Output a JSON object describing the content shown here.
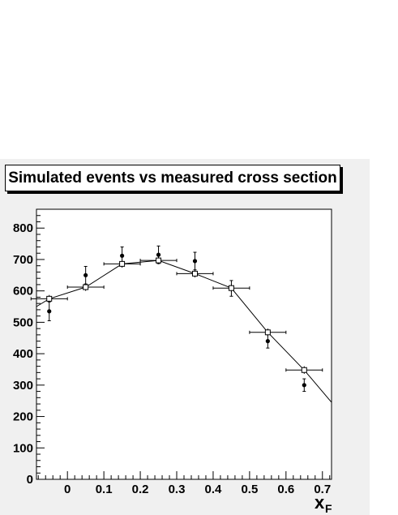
{
  "chart_data": {
    "type": "scatter",
    "title": "Simulated events vs measured cross section",
    "xlabel": "x",
    "xlabel_subscript": "F",
    "ylabel": "",
    "xlim": [
      -0.085,
      0.725
    ],
    "ylim": [
      0,
      860
    ],
    "x_ticks": [
      "0",
      "0.1",
      "0.2",
      "0.3",
      "0.4",
      "0.5",
      "0.6",
      "0.7"
    ],
    "y_ticks": [
      "0",
      "100",
      "200",
      "300",
      "400",
      "500",
      "600",
      "700",
      "800"
    ],
    "grid": false,
    "series": [
      {
        "marker": "open-square",
        "color": "#000000",
        "x": [
          -0.05,
          0.05,
          0.15,
          0.25,
          0.35,
          0.45,
          0.55,
          0.65
        ],
        "y": [
          575,
          612,
          686,
          697,
          655,
          609,
          468,
          348
        ],
        "x_err": [
          0.05,
          0.05,
          0.05,
          0.05,
          0.05,
          0.05,
          0.05,
          0.05
        ],
        "y_err": [
          12,
          12,
          12,
          12,
          12,
          12,
          12,
          12
        ]
      },
      {
        "marker": "filled-circle",
        "color": "#000000",
        "x": [
          -0.05,
          0.05,
          0.15,
          0.25,
          0.35,
          0.45,
          0.55,
          0.65
        ],
        "y": [
          535,
          650,
          712,
          715,
          695,
          608,
          440,
          300
        ],
        "y_err": [
          30,
          28,
          28,
          28,
          28,
          25,
          22,
          20
        ]
      }
    ],
    "connecting_line": {
      "x": [
        -0.085,
        -0.05,
        0.05,
        0.15,
        0.25,
        0.35,
        0.45,
        0.55,
        0.65,
        0.725
      ],
      "y": [
        550,
        575,
        612,
        686,
        697,
        655,
        609,
        468,
        348,
        245
      ]
    }
  }
}
